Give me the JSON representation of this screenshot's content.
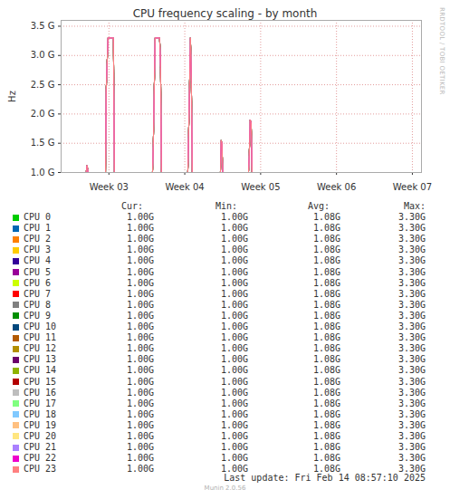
{
  "chart_data": {
    "type": "line",
    "title": "CPU frequency scaling - by month",
    "y_label": "Hz",
    "x": [
      2.37,
      2.7,
      2.713,
      2.725,
      2.955,
      2.964,
      2.988,
      3.06,
      3.072,
      3.575,
      3.585,
      3.609,
      3.669,
      3.681,
      3.693,
      4.04,
      4.05,
      4.075,
      4.087,
      4.099,
      4.47,
      4.48,
      4.49,
      4.5,
      4.84,
      4.85,
      4.862,
      4.875,
      4.887,
      7.12
    ],
    "xlim": [
      2.37,
      7.12
    ],
    "xticks": [
      {
        "value": 3,
        "label": "Week 03"
      },
      {
        "value": 4,
        "label": "Week 04"
      },
      {
        "value": 5,
        "label": "Week 05"
      },
      {
        "value": 6,
        "label": "Week 06"
      },
      {
        "value": 7,
        "label": "Week 07"
      }
    ],
    "ylim": [
      1.0,
      3.6
    ],
    "yticks": [
      {
        "value": 1.0,
        "label": "1.0 G"
      },
      {
        "value": 1.5,
        "label": "1.5 G"
      },
      {
        "value": 2.0,
        "label": "2.0 G"
      },
      {
        "value": 2.5,
        "label": "2.5 G"
      },
      {
        "value": 3.0,
        "label": "3.0 G"
      },
      {
        "value": 3.5,
        "label": "3.5 G"
      }
    ],
    "grid": true,
    "legend": "bottom",
    "stat_columns": [
      "Cur:",
      "Min:",
      "Avg:",
      "Max:"
    ],
    "series": [
      {
        "name": "CPU 0",
        "color": "#00cc00",
        "values": [
          1,
          1,
          1.12,
          1,
          1,
          2.4,
          3.3,
          3.3,
          1,
          1,
          1.45,
          3.3,
          3.3,
          2.8,
          1,
          1,
          1.6,
          3.3,
          2.55,
          1,
          1,
          1.55,
          1.5,
          1,
          1,
          1.3,
          1.9,
          1.85,
          1,
          1
        ],
        "stats": [
          "1.00G",
          "1.00G",
          "1.08G",
          "3.30G"
        ]
      },
      {
        "name": "CPU 1",
        "color": "#0066b3",
        "values": [
          1,
          1,
          1.12,
          1,
          1,
          2.4,
          3.3,
          3.3,
          1,
          1,
          1.45,
          3.3,
          3.3,
          2.8,
          1,
          1,
          1.6,
          3.3,
          2.55,
          1,
          1,
          1.55,
          1.5,
          1,
          1,
          1.3,
          1.9,
          1.85,
          1,
          1
        ],
        "stats": [
          "1.00G",
          "1.00G",
          "1.08G",
          "3.30G"
        ]
      },
      {
        "name": "CPU 2",
        "color": "#ff8000",
        "values": [
          1,
          1,
          1.12,
          1,
          1,
          2.4,
          3.3,
          3.3,
          1,
          1,
          1.45,
          3.3,
          3.3,
          2.8,
          1,
          1,
          1.6,
          3.3,
          2.55,
          1,
          1,
          1.55,
          1.5,
          1,
          1,
          1.3,
          1.9,
          1.85,
          1,
          1
        ],
        "stats": [
          "1.00G",
          "1.00G",
          "1.08G",
          "3.30G"
        ]
      },
      {
        "name": "CPU 3",
        "color": "#ffcc00",
        "values": [
          1,
          1,
          1.12,
          1,
          1,
          2.4,
          3.3,
          3.3,
          1,
          1,
          1.45,
          3.3,
          3.3,
          2.8,
          1,
          1,
          1.6,
          3.3,
          2.55,
          1,
          1,
          1.55,
          1.5,
          1,
          1,
          1.3,
          1.9,
          1.85,
          1,
          1
        ],
        "stats": [
          "1.00G",
          "1.00G",
          "1.08G",
          "3.30G"
        ]
      },
      {
        "name": "CPU 4",
        "color": "#330099",
        "values": [
          1,
          1,
          1.12,
          1,
          1,
          2.4,
          3.3,
          3.3,
          1,
          1,
          1.45,
          3.3,
          3.3,
          2.8,
          1,
          1,
          1.6,
          3.3,
          2.55,
          1,
          1,
          1.55,
          1.5,
          1,
          1,
          1.3,
          1.9,
          1.85,
          1,
          1
        ],
        "stats": [
          "1.00G",
          "1.00G",
          "1.08G",
          "3.30G"
        ]
      },
      {
        "name": "CPU 5",
        "color": "#990099",
        "values": [
          1,
          1,
          1.12,
          1,
          1,
          2.4,
          3.3,
          3.3,
          1,
          1,
          1.45,
          3.3,
          3.3,
          2.8,
          1,
          1,
          1.6,
          3.3,
          2.55,
          1,
          1,
          1.55,
          1.5,
          1,
          1,
          1.3,
          1.9,
          1.85,
          1,
          1
        ],
        "stats": [
          "1.00G",
          "1.00G",
          "1.08G",
          "3.30G"
        ]
      },
      {
        "name": "CPU 6",
        "color": "#ccff00",
        "values": [
          1,
          1,
          1.12,
          1,
          1,
          2.4,
          3.3,
          3.3,
          1,
          1,
          1.45,
          3.3,
          3.3,
          2.8,
          1,
          1,
          1.6,
          3.3,
          2.55,
          1,
          1,
          1.55,
          1.5,
          1,
          1,
          1.3,
          1.9,
          1.85,
          1,
          1
        ],
        "stats": [
          "1.00G",
          "1.00G",
          "1.08G",
          "3.30G"
        ]
      },
      {
        "name": "CPU 7",
        "color": "#ff0000",
        "values": [
          1,
          1,
          1.12,
          1,
          1,
          2.4,
          3.3,
          3.3,
          1,
          1,
          1.45,
          3.3,
          3.3,
          2.8,
          1,
          1,
          1.6,
          3.3,
          2.55,
          1,
          1,
          1.55,
          1.5,
          1,
          1,
          1.3,
          1.9,
          1.85,
          1,
          1
        ],
        "stats": [
          "1.00G",
          "1.00G",
          "1.08G",
          "3.30G"
        ]
      },
      {
        "name": "CPU 8",
        "color": "#808080",
        "values": [
          1,
          1,
          1.12,
          1,
          1,
          2.4,
          3.3,
          3.3,
          1,
          1,
          1.45,
          3.3,
          3.3,
          2.8,
          1,
          1,
          1.6,
          3.3,
          2.55,
          1,
          1,
          1.55,
          1.5,
          1,
          1,
          1.3,
          1.9,
          1.85,
          1,
          1
        ],
        "stats": [
          "1.00G",
          "1.00G",
          "1.08G",
          "3.30G"
        ]
      },
      {
        "name": "CPU 9",
        "color": "#008f00",
        "values": [
          1,
          1,
          1.12,
          1,
          1,
          2.4,
          3.3,
          3.3,
          1,
          1,
          1.45,
          3.3,
          3.3,
          2.8,
          1,
          1,
          1.6,
          3.3,
          2.55,
          1,
          1,
          1.55,
          1.5,
          1,
          1,
          1.3,
          1.9,
          1.85,
          1,
          1
        ],
        "stats": [
          "1.00G",
          "1.00G",
          "1.08G",
          "3.30G"
        ]
      },
      {
        "name": "CPU 10",
        "color": "#00487d",
        "values": [
          1,
          1,
          1.12,
          1,
          1,
          2.4,
          3.3,
          3.3,
          1,
          1,
          1.45,
          3.3,
          3.3,
          2.8,
          1,
          1,
          1.6,
          3.3,
          2.55,
          1,
          1,
          1.55,
          1.5,
          1,
          1,
          1.3,
          1.9,
          1.85,
          1,
          1
        ],
        "stats": [
          "1.00G",
          "1.00G",
          "1.08G",
          "3.30G"
        ]
      },
      {
        "name": "CPU 11",
        "color": "#b35a00",
        "values": [
          1,
          1,
          1.12,
          1,
          1,
          2.4,
          3.3,
          3.3,
          1,
          1,
          1.45,
          3.3,
          3.3,
          2.8,
          1,
          1,
          1.6,
          3.3,
          2.55,
          1,
          1,
          1.55,
          1.5,
          1,
          1,
          1.3,
          1.9,
          1.85,
          1,
          1
        ],
        "stats": [
          "1.00G",
          "1.00G",
          "1.08G",
          "3.30G"
        ]
      },
      {
        "name": "CPU 12",
        "color": "#b38f00",
        "values": [
          1,
          1,
          1.12,
          1,
          1,
          2.4,
          3.3,
          3.3,
          1,
          1,
          1.45,
          3.3,
          3.3,
          2.8,
          1,
          1,
          1.6,
          3.3,
          2.55,
          1,
          1,
          1.55,
          1.5,
          1,
          1,
          1.3,
          1.9,
          1.85,
          1,
          1
        ],
        "stats": [
          "1.00G",
          "1.00G",
          "1.08G",
          "3.30G"
        ]
      },
      {
        "name": "CPU 13",
        "color": "#6b006b",
        "values": [
          1,
          1,
          1.12,
          1,
          1,
          2.4,
          3.3,
          3.3,
          1,
          1,
          1.45,
          3.3,
          3.3,
          2.8,
          1,
          1,
          1.6,
          3.3,
          2.55,
          1,
          1,
          1.55,
          1.5,
          1,
          1,
          1.3,
          1.9,
          1.85,
          1,
          1
        ],
        "stats": [
          "1.00G",
          "1.00G",
          "1.08G",
          "3.30G"
        ]
      },
      {
        "name": "CPU 14",
        "color": "#8fb300",
        "values": [
          1,
          1,
          1.12,
          1,
          1,
          2.4,
          3.3,
          3.3,
          1,
          1,
          1.45,
          3.3,
          3.3,
          2.8,
          1,
          1,
          1.6,
          3.3,
          2.55,
          1,
          1,
          1.55,
          1.5,
          1,
          1,
          1.3,
          1.9,
          1.85,
          1,
          1
        ],
        "stats": [
          "1.00G",
          "1.00G",
          "1.08G",
          "3.30G"
        ]
      },
      {
        "name": "CPU 15",
        "color": "#b30000",
        "values": [
          1,
          1,
          1.12,
          1,
          1,
          2.4,
          3.3,
          3.3,
          1,
          1,
          1.45,
          3.3,
          3.3,
          2.8,
          1,
          1,
          1.6,
          3.3,
          2.55,
          1,
          1,
          1.55,
          1.5,
          1,
          1,
          1.3,
          1.9,
          1.85,
          1,
          1
        ],
        "stats": [
          "1.00G",
          "1.00G",
          "1.08G",
          "3.30G"
        ]
      },
      {
        "name": "CPU 16",
        "color": "#bebebe",
        "values": [
          1,
          1,
          1.12,
          1,
          1,
          2.4,
          3.3,
          3.3,
          1,
          1,
          1.45,
          3.3,
          3.3,
          2.8,
          1,
          1,
          1.6,
          3.3,
          2.55,
          1,
          1,
          1.55,
          1.5,
          1,
          1,
          1.3,
          1.9,
          1.85,
          1,
          1
        ],
        "stats": [
          "1.00G",
          "1.00G",
          "1.08G",
          "3.30G"
        ]
      },
      {
        "name": "CPU 17",
        "color": "#80ff80",
        "values": [
          1,
          1,
          1.12,
          1,
          1,
          2.4,
          3.3,
          3.3,
          1,
          1,
          1.45,
          3.3,
          3.3,
          2.8,
          1,
          1,
          1.6,
          3.3,
          2.55,
          1,
          1,
          1.55,
          1.5,
          1,
          1,
          1.3,
          1.9,
          1.85,
          1,
          1
        ],
        "stats": [
          "1.00G",
          "1.00G",
          "1.08G",
          "3.30G"
        ]
      },
      {
        "name": "CPU 18",
        "color": "#80c9ff",
        "values": [
          1,
          1,
          1.12,
          1,
          1,
          2.4,
          3.3,
          3.3,
          1,
          1,
          1.45,
          3.3,
          3.3,
          2.8,
          1,
          1,
          1.6,
          3.3,
          2.55,
          1,
          1,
          1.55,
          1.5,
          1,
          1,
          1.3,
          1.9,
          1.85,
          1,
          1
        ],
        "stats": [
          "1.00G",
          "1.00G",
          "1.08G",
          "3.30G"
        ]
      },
      {
        "name": "CPU 19",
        "color": "#ffc080",
        "values": [
          1,
          1,
          1.12,
          1,
          1,
          2.4,
          3.3,
          3.3,
          1,
          1,
          1.45,
          3.3,
          3.3,
          2.8,
          1,
          1,
          1.6,
          3.3,
          2.55,
          1,
          1,
          1.55,
          1.5,
          1,
          1,
          1.3,
          1.9,
          1.85,
          1,
          1
        ],
        "stats": [
          "1.00G",
          "1.00G",
          "1.08G",
          "3.30G"
        ]
      },
      {
        "name": "CPU 20",
        "color": "#ffe680",
        "values": [
          1,
          1,
          1.12,
          1,
          1,
          2.4,
          3.3,
          3.3,
          1,
          1,
          1.45,
          3.3,
          3.3,
          2.8,
          1,
          1,
          1.6,
          3.3,
          2.55,
          1,
          1,
          1.55,
          1.5,
          1,
          1,
          1.3,
          1.9,
          1.85,
          1,
          1
        ],
        "stats": [
          "1.00G",
          "1.00G",
          "1.08G",
          "3.30G"
        ]
      },
      {
        "name": "CPU 21",
        "color": "#aa80ff",
        "values": [
          1,
          1,
          1.12,
          1,
          1,
          2.4,
          3.3,
          3.3,
          1,
          1,
          1.45,
          3.3,
          3.3,
          2.8,
          1,
          1,
          1.6,
          3.3,
          2.55,
          1,
          1,
          1.55,
          1.5,
          1,
          1,
          1.3,
          1.9,
          1.85,
          1,
          1
        ],
        "stats": [
          "1.00G",
          "1.00G",
          "1.08G",
          "3.30G"
        ]
      },
      {
        "name": "CPU 22",
        "color": "#ee00cc",
        "values": [
          1,
          1,
          1.12,
          1,
          1,
          2.4,
          3.3,
          3.3,
          1,
          1,
          1.45,
          3.3,
          3.3,
          2.8,
          1,
          1,
          1.6,
          3.3,
          2.55,
          1,
          1,
          1.55,
          1.5,
          1,
          1,
          1.3,
          1.9,
          1.85,
          1,
          1
        ],
        "stats": [
          "1.00G",
          "1.00G",
          "1.08G",
          "3.30G"
        ]
      },
      {
        "name": "CPU 23",
        "color": "#ff8080",
        "values": [
          1,
          1,
          1.12,
          1,
          1,
          2.4,
          3.3,
          3.3,
          1,
          1,
          1.45,
          3.3,
          3.3,
          2.8,
          1,
          1,
          1.6,
          3.3,
          2.55,
          1,
          1,
          1.55,
          1.5,
          1,
          1,
          1.3,
          1.9,
          1.85,
          1,
          1
        ],
        "stats": [
          "1.00G",
          "1.00G",
          "1.08G",
          "3.30G"
        ]
      }
    ],
    "last_update": "Last update: Fri Feb 14 08:57:10 2025",
    "footer": "Munin 2.0.56",
    "side_text": "RRDTOOL / TOBI OETIKER"
  }
}
